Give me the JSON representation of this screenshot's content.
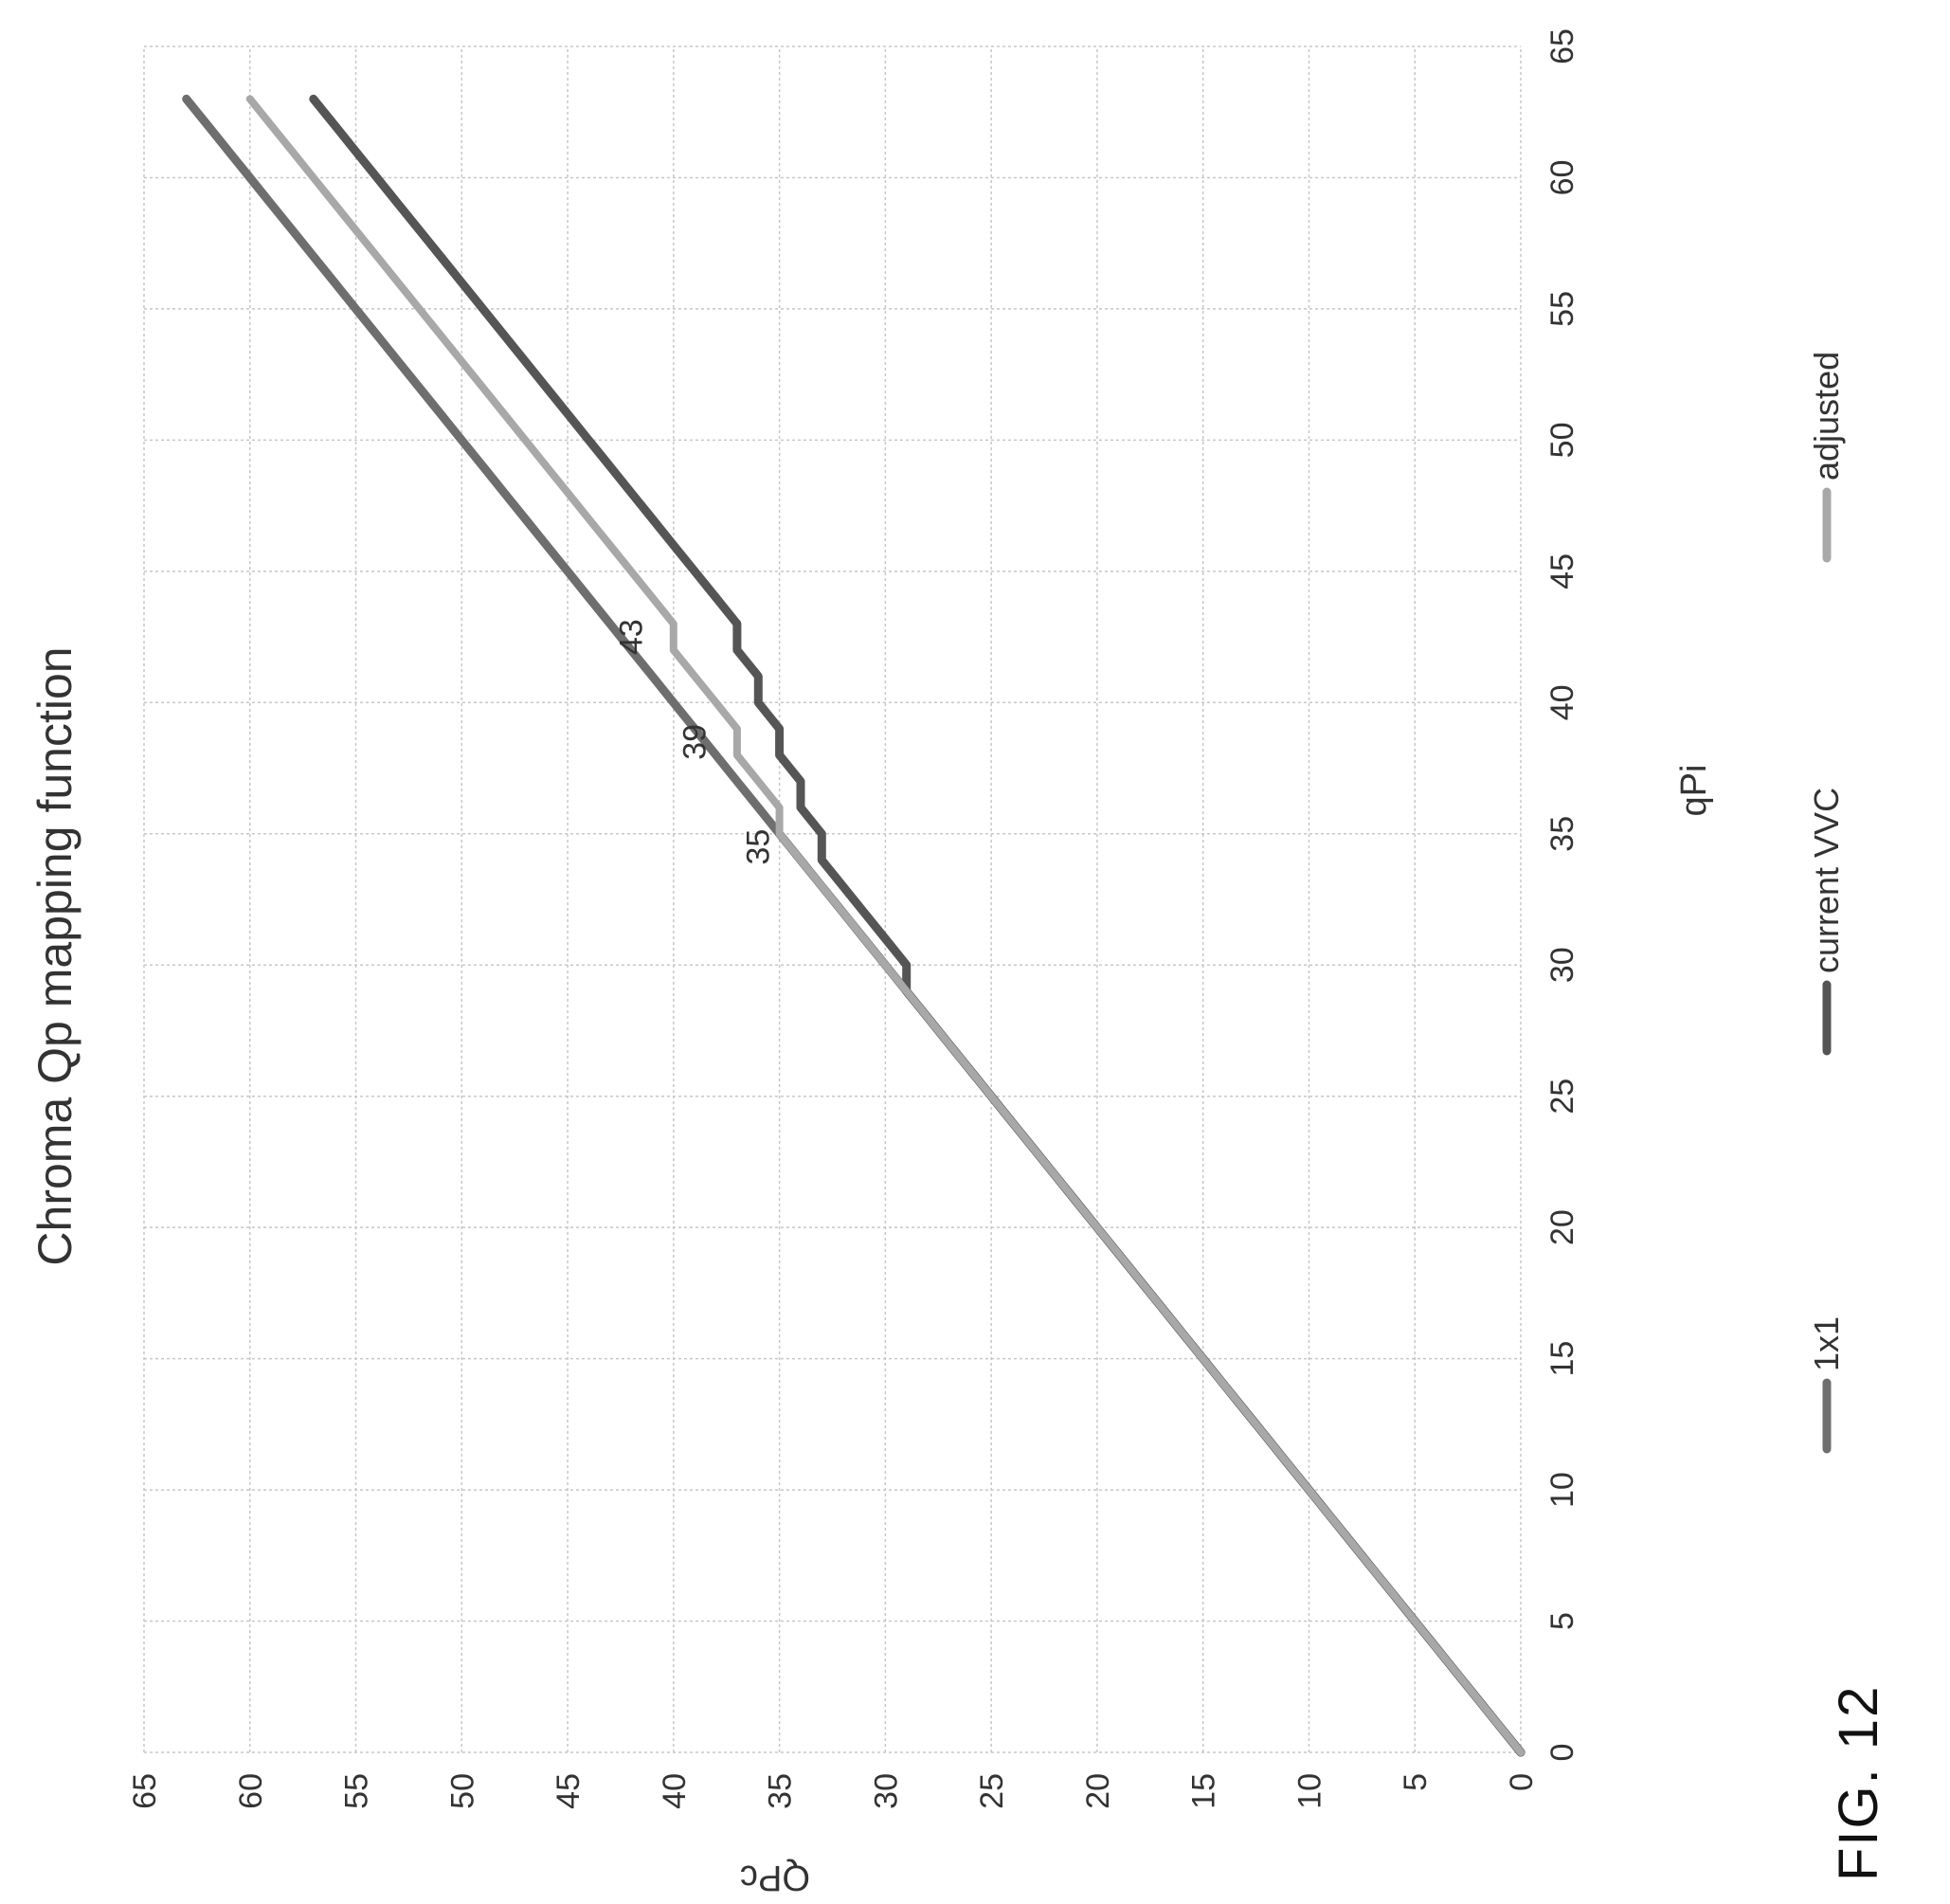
{
  "figure_label": "FIG. 12",
  "chart_data": {
    "type": "line",
    "title": "Chroma Qp mapping function",
    "xlabel": "qPi",
    "ylabel": "QPc",
    "xlim": [
      0,
      65
    ],
    "ylim": [
      0,
      65
    ],
    "xticks": [
      "0",
      "5",
      "10",
      "15",
      "20",
      "25",
      "30",
      "35",
      "40",
      "45",
      "50",
      "55",
      "60",
      "65"
    ],
    "yticks": [
      "0",
      "5",
      "10",
      "15",
      "20",
      "25",
      "30",
      "35",
      "40",
      "45",
      "50",
      "55",
      "60",
      "65"
    ],
    "grid": true,
    "legend_position": "bottom",
    "x": [
      0,
      1,
      2,
      3,
      4,
      5,
      6,
      7,
      8,
      9,
      10,
      11,
      12,
      13,
      14,
      15,
      16,
      17,
      18,
      19,
      20,
      21,
      22,
      23,
      24,
      25,
      26,
      27,
      28,
      29,
      30,
      31,
      32,
      33,
      34,
      35,
      36,
      37,
      38,
      39,
      40,
      41,
      42,
      43,
      44,
      45,
      46,
      47,
      48,
      49,
      50,
      51,
      52,
      53,
      54,
      55,
      56,
      57,
      58,
      59,
      60,
      61,
      62,
      63
    ],
    "series": [
      {
        "name": "1x1",
        "color": "#6e6e6e",
        "values": [
          0,
          1,
          2,
          3,
          4,
          5,
          6,
          7,
          8,
          9,
          10,
          11,
          12,
          13,
          14,
          15,
          16,
          17,
          18,
          19,
          20,
          21,
          22,
          23,
          24,
          25,
          26,
          27,
          28,
          29,
          30,
          31,
          32,
          33,
          34,
          35,
          36,
          37,
          38,
          39,
          40,
          41,
          42,
          43,
          44,
          45,
          46,
          47,
          48,
          49,
          50,
          51,
          52,
          53,
          54,
          55,
          56,
          57,
          58,
          59,
          60,
          61,
          62,
          63
        ]
      },
      {
        "name": "current VVC",
        "color": "#555555",
        "values": [
          0,
          1,
          2,
          3,
          4,
          5,
          6,
          7,
          8,
          9,
          10,
          11,
          12,
          13,
          14,
          15,
          16,
          17,
          18,
          19,
          20,
          21,
          22,
          23,
          24,
          25,
          26,
          27,
          28,
          29,
          29,
          30,
          31,
          32,
          33,
          33,
          34,
          34,
          35,
          35,
          36,
          36,
          37,
          37,
          38,
          39,
          40,
          41,
          42,
          43,
          44,
          45,
          46,
          47,
          48,
          49,
          50,
          51,
          52,
          53,
          54,
          55,
          56,
          57
        ]
      },
      {
        "name": "adjusted",
        "color": "#a8a8a8",
        "values": [
          0,
          1,
          2,
          3,
          4,
          5,
          6,
          7,
          8,
          9,
          10,
          11,
          12,
          13,
          14,
          15,
          16,
          17,
          18,
          19,
          20,
          21,
          22,
          23,
          24,
          25,
          26,
          27,
          28,
          29,
          30,
          31,
          32,
          33,
          34,
          35,
          35,
          36,
          37,
          37,
          38,
          39,
          40,
          40,
          41,
          42,
          43,
          44,
          45,
          46,
          47,
          48,
          49,
          50,
          51,
          52,
          53,
          54,
          55,
          56,
          57,
          58,
          59,
          60
        ]
      }
    ],
    "annotations": [
      {
        "text": "35",
        "x": 34.5,
        "y": 35.5
      },
      {
        "text": "39",
        "x": 38.5,
        "y": 38.5
      },
      {
        "text": "43",
        "x": 42.5,
        "y": 41.5
      }
    ]
  }
}
